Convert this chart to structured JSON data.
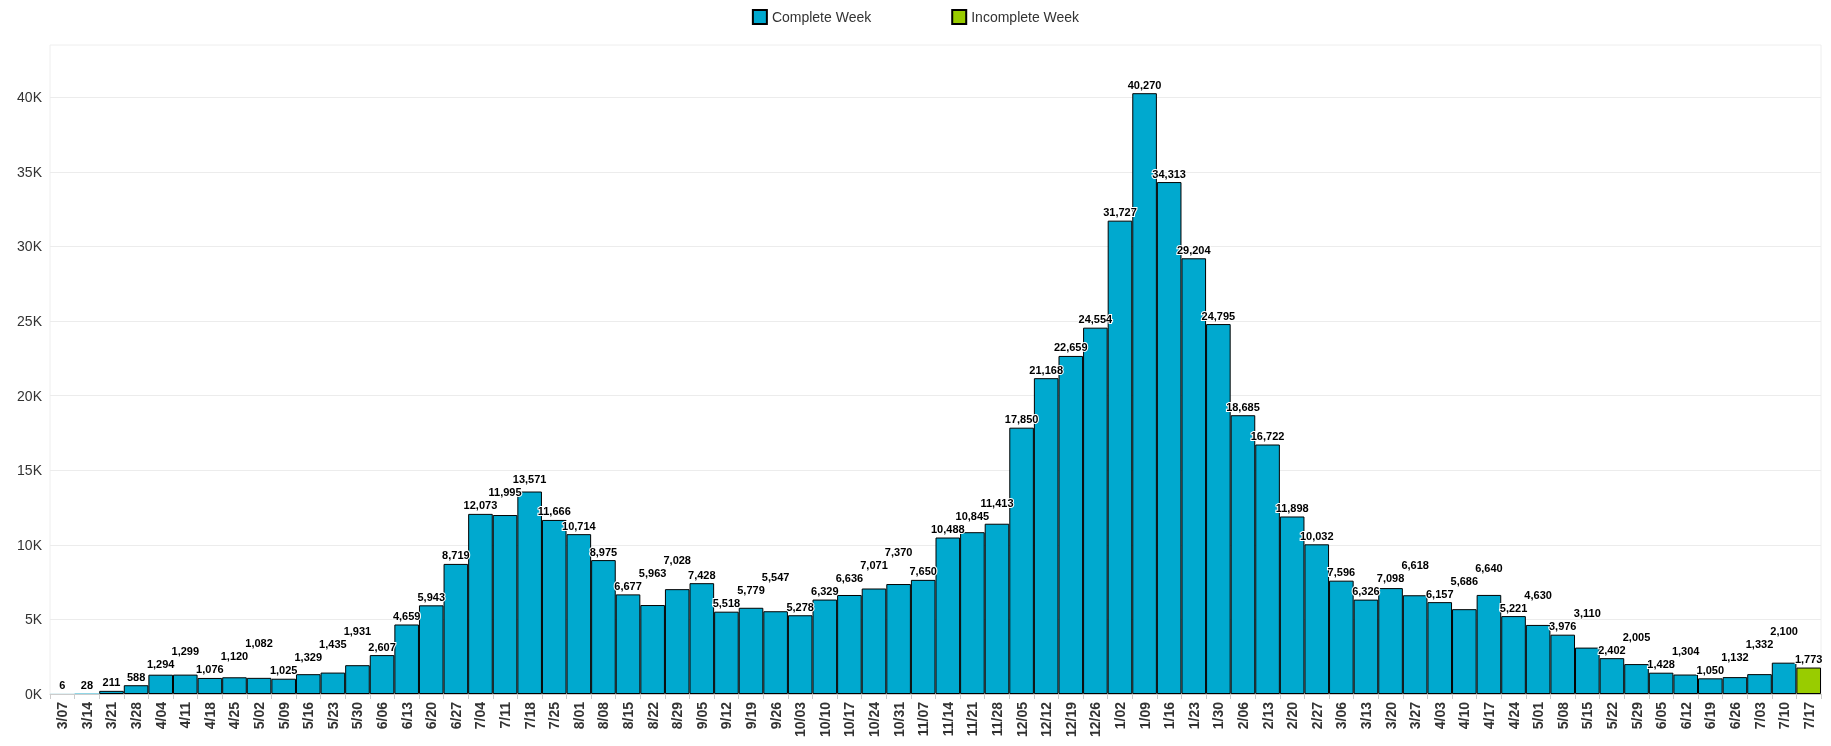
{
  "chart_data": {
    "type": "bar",
    "stacked": true,
    "grid": "y",
    "legend": "top",
    "categories": [
      "3/07",
      "3/14",
      "3/21",
      "3/28",
      "4/04",
      "4/11",
      "4/18",
      "4/25",
      "5/02",
      "5/09",
      "5/16",
      "5/23",
      "5/30",
      "6/06",
      "6/13",
      "6/20",
      "6/27",
      "7/04",
      "7/11",
      "7/18",
      "7/25",
      "8/01",
      "8/08",
      "8/15",
      "8/22",
      "8/29",
      "9/05",
      "9/12",
      "9/19",
      "9/26",
      "10/03",
      "10/10",
      "10/17",
      "10/24",
      "10/31",
      "11/07",
      "11/14",
      "11/21",
      "11/28",
      "12/05",
      "12/12",
      "12/19",
      "12/26",
      "1/02",
      "1/09",
      "1/16",
      "1/23",
      "1/30",
      "2/06",
      "2/13",
      "2/20",
      "2/27",
      "3/06",
      "3/13",
      "3/20",
      "3/27",
      "4/03",
      "4/10",
      "4/17",
      "4/24",
      "5/01",
      "5/08",
      "5/15",
      "5/22",
      "5/29",
      "6/05",
      "6/12",
      "6/19",
      "6/26",
      "7/03",
      "7/10",
      "7/17"
    ],
    "series": [
      {
        "name": "Complete Week",
        "color": "#00a9cf",
        "values": [
          6,
          28,
          211,
          588,
          1294,
          1299,
          1076,
          1120,
          1082,
          1025,
          1329,
          1435,
          1931,
          2607,
          4659,
          5943,
          8719,
          12073,
          11995,
          13571,
          11666,
          10714,
          8975,
          6677,
          5963,
          7028,
          7428,
          5518,
          5779,
          5547,
          5278,
          6329,
          6636,
          7071,
          7370,
          7650,
          10488,
          10845,
          11413,
          17850,
          21168,
          22659,
          24554,
          31727,
          40270,
          34313,
          29204,
          24795,
          18685,
          16722,
          11898,
          10032,
          7596,
          6326,
          7098,
          6618,
          6157,
          5686,
          6640,
          5221,
          4630,
          3976,
          3110,
          2402,
          2005,
          1428,
          1304,
          1050,
          1132,
          1332,
          2100,
          null
        ],
        "value_labels": [
          "6",
          "28",
          "211",
          "588",
          "1,294",
          "1,299",
          "1,076",
          "1,120",
          "1,082",
          "1,025",
          "1,329",
          "1,435",
          "1,931",
          "2,607",
          "4,659",
          "5,943",
          "8,719",
          "12,073",
          "11,995",
          "13,571",
          "11,666",
          "10,714",
          "8,975",
          "6,677",
          "5,963",
          "7,028",
          "7,428",
          "5,518",
          "5,779",
          "5,547",
          "5,278",
          "6,329",
          "6,636",
          "7,071",
          "7,370",
          "7,650",
          "10,488",
          "10,845",
          "11,413",
          "17,850",
          "21,168",
          "22,659",
          "24,554",
          "31,727",
          "40,270",
          "34,313",
          "29,204",
          "24,795",
          "18,685",
          "16,722",
          "11,898",
          "10,032",
          "7,596",
          "6,326",
          "7,098",
          "6,618",
          "6,157",
          "5,686",
          "6,640",
          "5,221",
          "4,630",
          "3,976",
          "3,110",
          "2,402",
          "2,005",
          "1,428",
          "1,304",
          "1,050",
          "1,132",
          "1,332",
          "2,100",
          null
        ]
      },
      {
        "name": "Incomplete Week",
        "color": "#99cc00",
        "values": [
          null,
          null,
          null,
          null,
          null,
          null,
          null,
          null,
          null,
          null,
          null,
          null,
          null,
          null,
          null,
          null,
          null,
          null,
          null,
          null,
          null,
          null,
          null,
          null,
          null,
          null,
          null,
          null,
          null,
          null,
          null,
          null,
          null,
          null,
          null,
          null,
          null,
          null,
          null,
          null,
          null,
          null,
          null,
          null,
          null,
          null,
          null,
          null,
          null,
          null,
          null,
          null,
          null,
          null,
          null,
          null,
          null,
          null,
          null,
          null,
          null,
          null,
          null,
          null,
          null,
          null,
          null,
          null,
          null,
          null,
          null,
          1773
        ],
        "value_labels": [
          null,
          null,
          null,
          null,
          null,
          null,
          null,
          null,
          null,
          null,
          null,
          null,
          null,
          null,
          null,
          null,
          null,
          null,
          null,
          null,
          null,
          null,
          null,
          null,
          null,
          null,
          null,
          null,
          null,
          null,
          null,
          null,
          null,
          null,
          null,
          null,
          null,
          null,
          null,
          null,
          null,
          null,
          null,
          null,
          null,
          null,
          null,
          null,
          null,
          null,
          null,
          null,
          null,
          null,
          null,
          null,
          null,
          null,
          null,
          null,
          null,
          null,
          null,
          null,
          null,
          null,
          null,
          null,
          null,
          null,
          null,
          "1,773"
        ]
      }
    ],
    "ylim": [
      0,
      43500
    ],
    "yticks": [
      {
        "value": 0,
        "label": "0K"
      },
      {
        "value": 5000,
        "label": "5K"
      },
      {
        "value": 10000,
        "label": "10K"
      },
      {
        "value": 15000,
        "label": "15K"
      },
      {
        "value": 20000,
        "label": "20K"
      },
      {
        "value": 25000,
        "label": "25K"
      },
      {
        "value": 30000,
        "label": "30K"
      },
      {
        "value": 35000,
        "label": "35K"
      },
      {
        "value": 40000,
        "label": "40K"
      }
    ]
  }
}
